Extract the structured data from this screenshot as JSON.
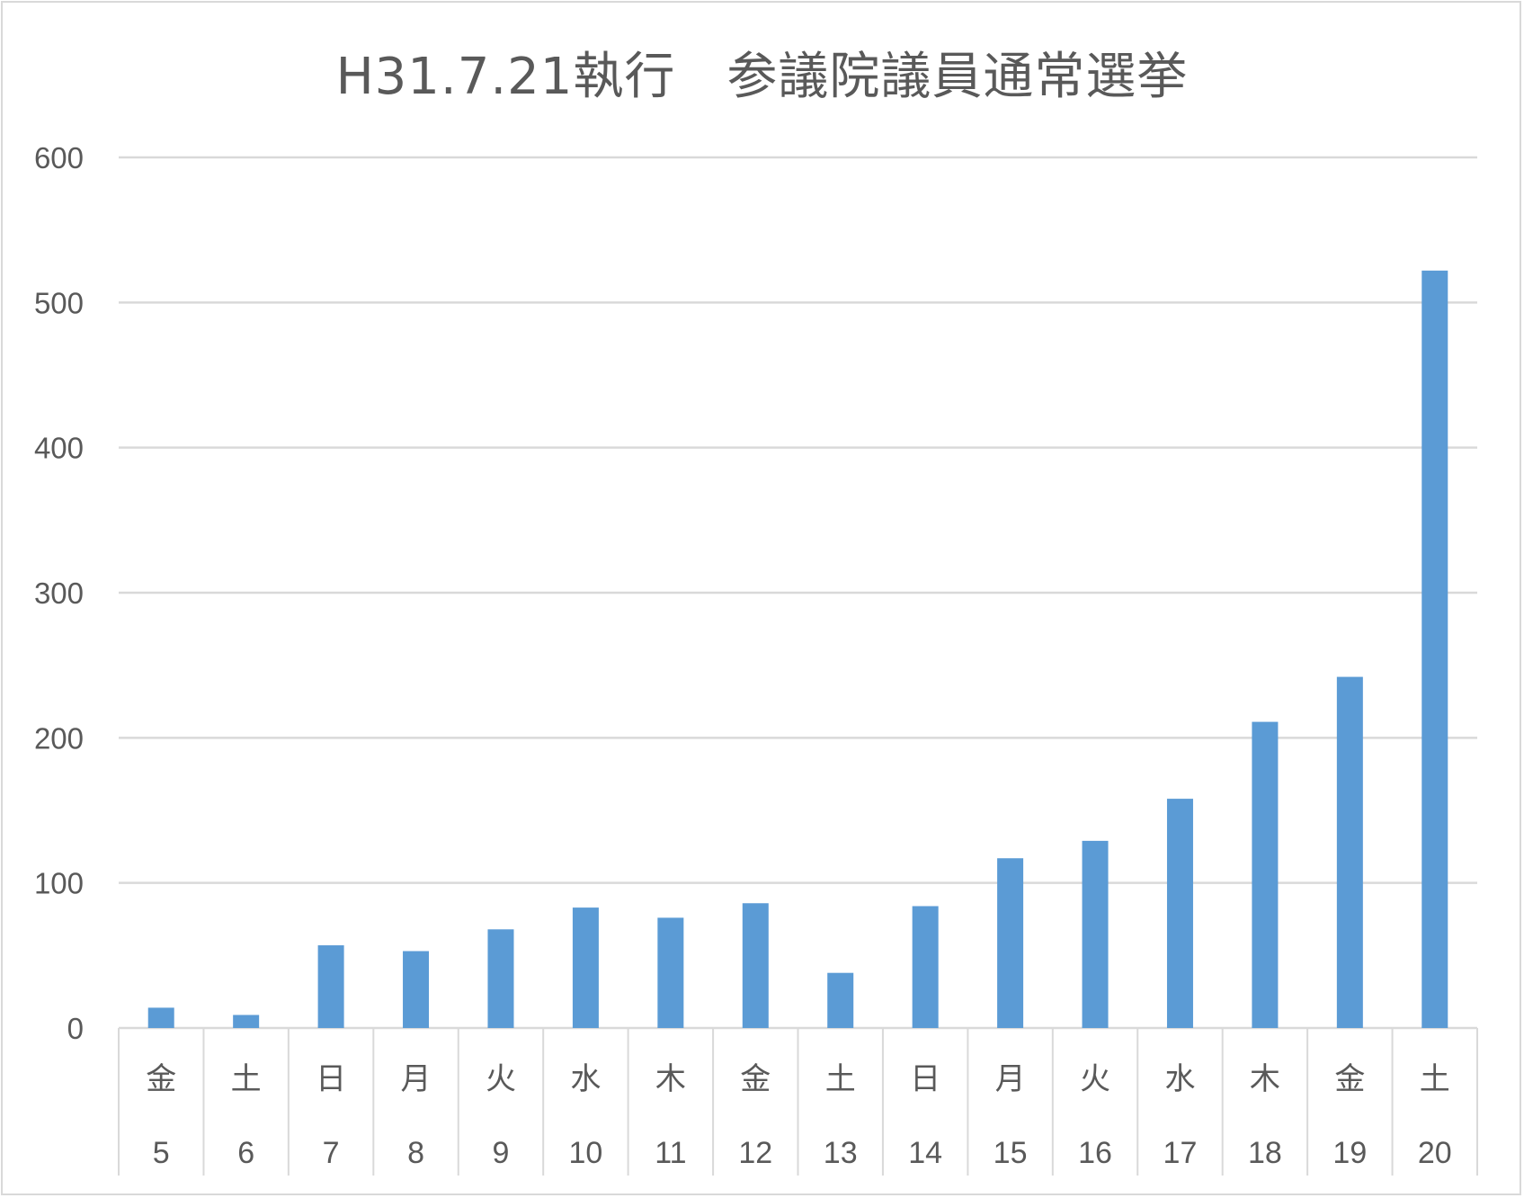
{
  "chart_data": {
    "type": "bar",
    "title": "H31.7.21執行　参議院議員通常選挙",
    "xlabel": "",
    "ylabel": "",
    "ylim": [
      0,
      600
    ],
    "yticks": [
      0,
      100,
      200,
      300,
      400,
      500,
      600
    ],
    "grid": true,
    "legend": "none",
    "categories": [
      {
        "weekday": "金",
        "day": "5"
      },
      {
        "weekday": "土",
        "day": "6"
      },
      {
        "weekday": "日",
        "day": "7"
      },
      {
        "weekday": "月",
        "day": "8"
      },
      {
        "weekday": "火",
        "day": "9"
      },
      {
        "weekday": "水",
        "day": "10"
      },
      {
        "weekday": "木",
        "day": "11"
      },
      {
        "weekday": "金",
        "day": "12"
      },
      {
        "weekday": "土",
        "day": "13"
      },
      {
        "weekday": "日",
        "day": "14"
      },
      {
        "weekday": "月",
        "day": "15"
      },
      {
        "weekday": "火",
        "day": "16"
      },
      {
        "weekday": "水",
        "day": "17"
      },
      {
        "weekday": "木",
        "day": "18"
      },
      {
        "weekday": "金",
        "day": "19"
      },
      {
        "weekday": "土",
        "day": "20"
      }
    ],
    "values": [
      14,
      9,
      57,
      53,
      68,
      83,
      76,
      86,
      38,
      84,
      117,
      129,
      158,
      211,
      242,
      522
    ],
    "colors": {
      "bar": "#5b9bd5",
      "grid": "#d9d9d9",
      "text": "#595959"
    }
  }
}
